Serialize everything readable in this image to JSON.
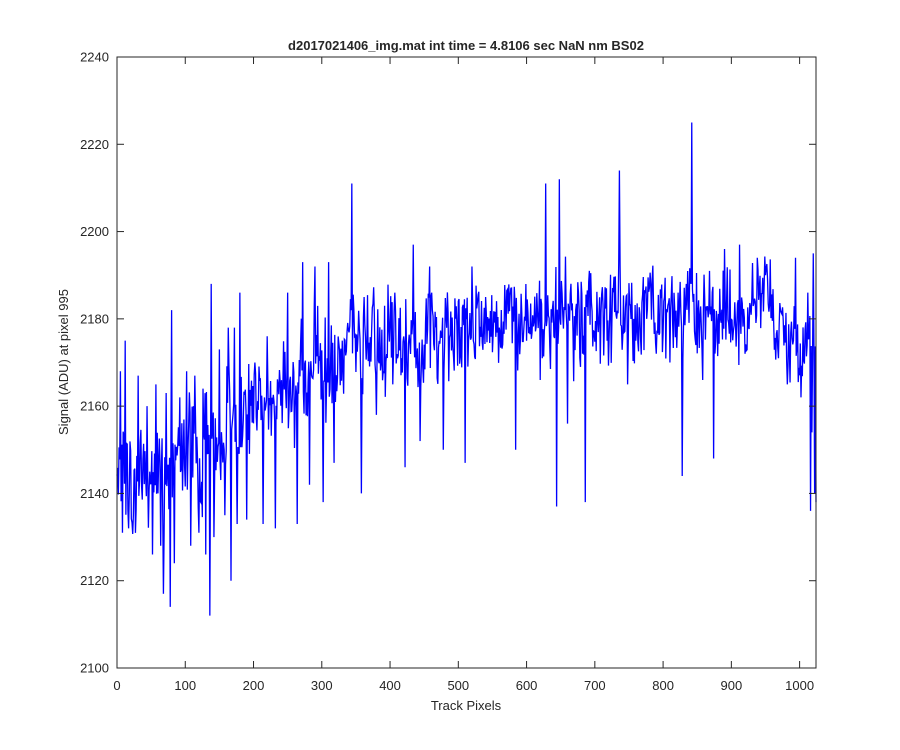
{
  "chart_data": {
    "type": "line",
    "title": "d2017021406_img.mat int time = 4.8106 sec  NaN nm BS02",
    "xlabel": "Track Pixels",
    "ylabel": "Signal (ADU) at pixel 995",
    "xlim": [
      0,
      1024
    ],
    "ylim": [
      2100,
      2240
    ],
    "xticks": [
      "0",
      "100",
      "200",
      "300",
      "400",
      "500",
      "600",
      "700",
      "800",
      "900",
      "1000"
    ],
    "yticks": [
      "2100",
      "2120",
      "2140",
      "2160",
      "2180",
      "2200",
      "2220",
      "2240"
    ],
    "grid": false,
    "legend": "none",
    "series": [
      {
        "color": "#0000ff",
        "x": [
          0,
          10,
          20,
          30,
          40,
          50,
          60,
          70,
          80,
          90,
          100,
          110,
          120,
          130,
          140,
          150,
          160,
          170,
          180,
          190,
          200,
          210,
          220,
          230,
          240,
          250,
          260,
          270,
          280,
          290,
          300,
          310,
          320,
          330,
          340,
          350,
          360,
          370,
          380,
          390,
          400,
          410,
          420,
          430,
          440,
          450,
          460,
          470,
          480,
          490,
          500,
          510,
          520,
          530,
          540,
          550,
          560,
          570,
          580,
          590,
          600,
          610,
          620,
          630,
          640,
          650,
          660,
          670,
          680,
          690,
          700,
          710,
          720,
          730,
          740,
          750,
          760,
          770,
          780,
          790,
          800,
          810,
          820,
          830,
          840,
          850,
          860,
          870,
          880,
          890,
          900,
          910,
          920,
          930,
          940,
          950,
          960,
          970,
          980,
          990,
          1000,
          1010,
          1020,
          1024
        ],
        "values": [
          2145,
          2150,
          2140,
          2143,
          2150,
          2142,
          2148,
          2140,
          2146,
          2150,
          2148,
          2155,
          2145,
          2152,
          2148,
          2150,
          2156,
          2158,
          2152,
          2160,
          2157,
          2163,
          2160,
          2158,
          2165,
          2167,
          2162,
          2168,
          2165,
          2170,
          2168,
          2172,
          2170,
          2169,
          2175,
          2173,
          2172,
          2176,
          2175,
          2172,
          2178,
          2176,
          2174,
          2178,
          2170,
          2176,
          2180,
          2175,
          2178,
          2179,
          2175,
          2180,
          2178,
          2182,
          2179,
          2181,
          2178,
          2180,
          2183,
          2179,
          2177,
          2182,
          2180,
          2178,
          2181,
          2180,
          2183,
          2178,
          2180,
          2182,
          2179,
          2181,
          2178,
          2185,
          2180,
          2182,
          2178,
          2180,
          2183,
          2180,
          2177,
          2182,
          2180,
          2179,
          2184,
          2181,
          2178,
          2182,
          2180,
          2179,
          2182,
          2178,
          2180,
          2183,
          2185,
          2188,
          2182,
          2178,
          2176,
          2174,
          2178,
          2172,
          2175,
          2172
        ],
        "spikes": [
          [
            5,
            2168
          ],
          [
            8,
            2131
          ],
          [
            12,
            2175
          ],
          [
            17,
            2132
          ],
          [
            24,
            2135
          ],
          [
            31,
            2167
          ],
          [
            44,
            2160
          ],
          [
            52,
            2126
          ],
          [
            57,
            2165
          ],
          [
            64,
            2128
          ],
          [
            68,
            2117
          ],
          [
            72,
            2163
          ],
          [
            78,
            2114
          ],
          [
            80,
            2182
          ],
          [
            84,
            2124
          ],
          [
            92,
            2162
          ],
          [
            102,
            2168
          ],
          [
            108,
            2128
          ],
          [
            114,
            2167
          ],
          [
            120,
            2131
          ],
          [
            126,
            2164
          ],
          [
            130,
            2126
          ],
          [
            136,
            2112
          ],
          [
            138,
            2188
          ],
          [
            142,
            2130
          ],
          [
            150,
            2173
          ],
          [
            158,
            2135
          ],
          [
            163,
            2178
          ],
          [
            167,
            2120
          ],
          [
            172,
            2178
          ],
          [
            176,
            2133
          ],
          [
            180,
            2186
          ],
          [
            190,
            2134
          ],
          [
            202,
            2170
          ],
          [
            214,
            2133
          ],
          [
            220,
            2176
          ],
          [
            232,
            2132
          ],
          [
            250,
            2186
          ],
          [
            264,
            2133
          ],
          [
            272,
            2193
          ],
          [
            282,
            2142
          ],
          [
            290,
            2192
          ],
          [
            302,
            2138
          ],
          [
            310,
            2193
          ],
          [
            318,
            2147
          ],
          [
            330,
            2175
          ],
          [
            344,
            2211
          ],
          [
            348,
            2176
          ],
          [
            358,
            2140
          ],
          [
            362,
            2185
          ],
          [
            380,
            2158
          ],
          [
            392,
            2183
          ],
          [
            404,
            2165
          ],
          [
            422,
            2146
          ],
          [
            434,
            2197
          ],
          [
            444,
            2152
          ],
          [
            458,
            2192
          ],
          [
            478,
            2150
          ],
          [
            500,
            2184
          ],
          [
            510,
            2147
          ],
          [
            520,
            2192
          ],
          [
            540,
            2185
          ],
          [
            560,
            2178
          ],
          [
            584,
            2150
          ],
          [
            600,
            2175
          ],
          [
            620,
            2166
          ],
          [
            628,
            2211
          ],
          [
            640,
            2176
          ],
          [
            644,
            2137
          ],
          [
            648,
            2212
          ],
          [
            660,
            2156
          ],
          [
            682,
            2172
          ],
          [
            686,
            2138
          ],
          [
            704,
            2180
          ],
          [
            718,
            2175
          ],
          [
            736,
            2214
          ],
          [
            748,
            2165
          ],
          [
            760,
            2175
          ],
          [
            776,
            2180
          ],
          [
            790,
            2172
          ],
          [
            802,
            2185
          ],
          [
            810,
            2170
          ],
          [
            822,
            2186
          ],
          [
            828,
            2144
          ],
          [
            834,
            2188
          ],
          [
            842,
            2225
          ],
          [
            848,
            2174
          ],
          [
            858,
            2166
          ],
          [
            868,
            2191
          ],
          [
            874,
            2148
          ],
          [
            890,
            2196
          ],
          [
            900,
            2180
          ],
          [
            912,
            2197
          ],
          [
            920,
            2172
          ],
          [
            938,
            2194
          ],
          [
            950,
            2190
          ],
          [
            962,
            2179
          ],
          [
            972,
            2182
          ],
          [
            982,
            2165
          ],
          [
            994,
            2194
          ],
          [
            1002,
            2162
          ],
          [
            1012,
            2186
          ],
          [
            1016,
            2136
          ],
          [
            1018,
            2154
          ],
          [
            1020,
            2195
          ],
          [
            1022,
            2140
          ],
          [
            1024,
            2138
          ]
        ]
      }
    ]
  }
}
